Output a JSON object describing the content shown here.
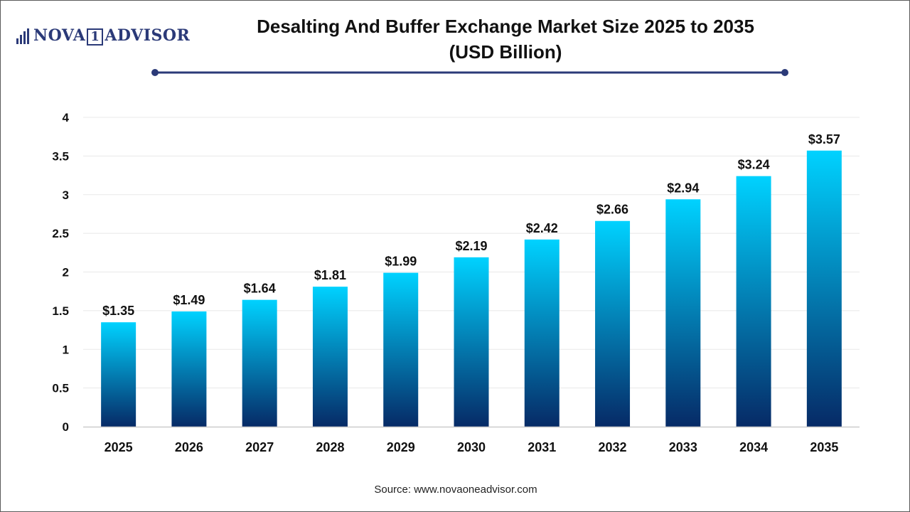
{
  "brand": {
    "name_left": "NOVA",
    "name_mark": "1",
    "name_right": "ADVISOR"
  },
  "colors": {
    "bar_top": "#00d2ff",
    "bar_bottom": "#062a66",
    "rule": "#2b3a78",
    "axis": "#cccccc",
    "grid": "#e8e8e8"
  },
  "source_text": "Source: www.novaoneadvisor.com",
  "chart_data": {
    "type": "bar",
    "title": "Desalting And Buffer Exchange Market Size 2025 to 2035",
    "subtitle": "(USD Billion)",
    "xlabel": "",
    "ylabel": "",
    "categories": [
      "2025",
      "2026",
      "2027",
      "2028",
      "2029",
      "2030",
      "2031",
      "2032",
      "2033",
      "2034",
      "2035"
    ],
    "values": [
      1.35,
      1.49,
      1.64,
      1.81,
      1.99,
      2.19,
      2.42,
      2.66,
      2.94,
      3.24,
      3.57
    ],
    "data_labels": [
      "$1.35",
      "$1.49",
      "$1.64",
      "$1.81",
      "$1.99",
      "$2.19",
      "$2.42",
      "$2.66",
      "$2.94",
      "$3.24",
      "$3.57"
    ],
    "ylim": [
      0,
      4
    ],
    "yticks": [
      "0",
      "0.5",
      "1",
      "1.5",
      "2",
      "2.5",
      "3",
      "3.5",
      "4"
    ],
    "grid": true,
    "legend": "none"
  }
}
